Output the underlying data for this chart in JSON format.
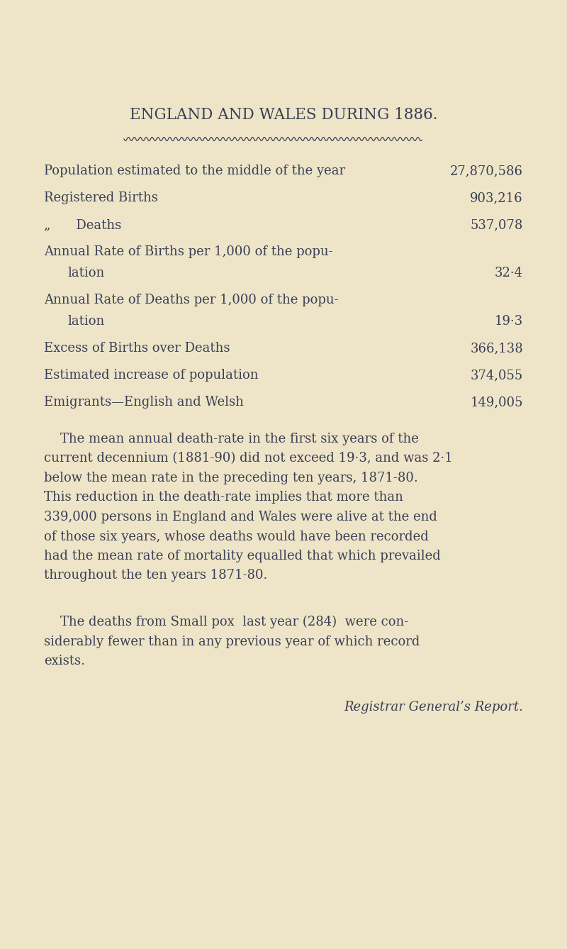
{
  "background_color": "#EEE5C9",
  "text_color": "#3a3f54",
  "title": "ENGLAND AND WALES DURING 1886.",
  "title_fontsize": 15.5,
  "body_fontsize": 13.0,
  "value_fontsize": 13.0,
  "paragraph1_lines": [
    "    The mean annual death-rate in the first six years of the",
    "current decennium (1881-90) did not exceed 19·3, and was 2·1",
    "below the mean rate in the preceding ten years, 1871-80.",
    "This reduction in the death-rate implies that more than",
    "339,000 persons in England and Wales were alive at the end",
    "of those six years, whose deaths would have been recorded",
    "had the mean rate of mortality equalled that which prevailed",
    "throughout the ten years 1871-80."
  ],
  "paragraph2_lines": [
    "    The deaths from Small pox  last year (284)  were con-",
    "siderably fewer than in any previous year of which record",
    "exists."
  ],
  "signature": "Registrar General’s Report."
}
